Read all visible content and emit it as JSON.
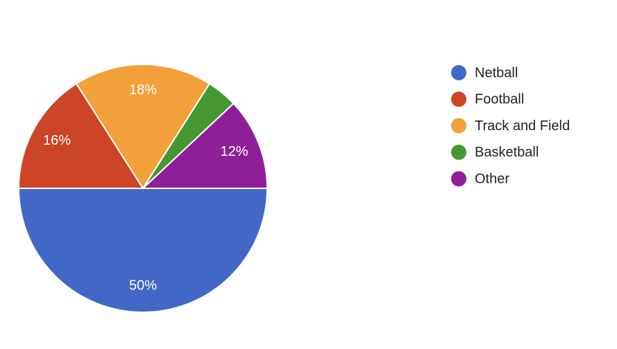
{
  "chart_data": {
    "type": "pie",
    "categories": [
      "Netball",
      "Football",
      "Track and Field",
      "Basketball",
      "Other"
    ],
    "values": [
      50,
      16,
      18,
      4,
      12
    ],
    "value_labels": [
      "50%",
      "16%",
      "18%",
      null,
      "12%"
    ],
    "colors": [
      "#4267c7",
      "#cc4526",
      "#f2a03a",
      "#459831",
      "#8e1f99"
    ],
    "start_angle": 90,
    "legend": "right"
  }
}
